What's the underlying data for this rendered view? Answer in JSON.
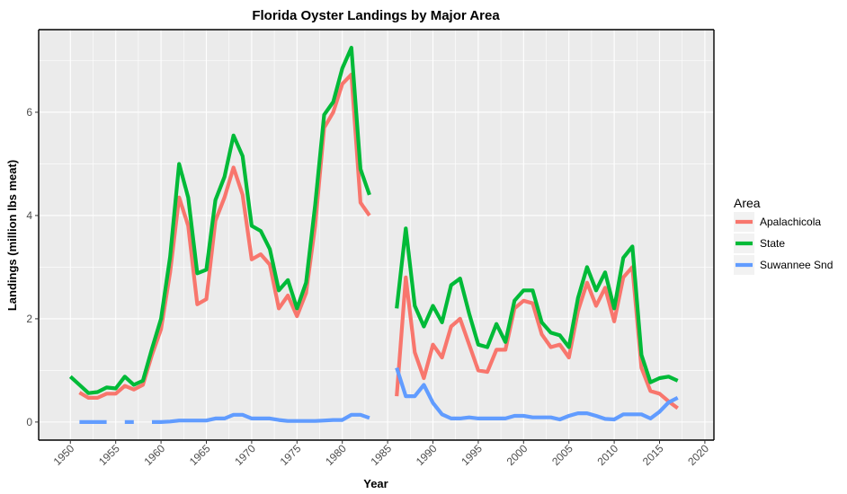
{
  "chart_data": {
    "type": "line",
    "title": "Florida Oyster Landings by Major Area",
    "xlabel": "Year",
    "ylabel": "Landings (million lbs meat)",
    "xlim": [
      1946.5,
      2021
    ],
    "ylim": [
      -0.35,
      7.6
    ],
    "x_ticks": [
      1950,
      1955,
      1960,
      1965,
      1970,
      1975,
      1980,
      1985,
      1990,
      1995,
      2000,
      2005,
      2010,
      2015,
      2020
    ],
    "y_ticks": [
      0,
      2,
      4,
      6
    ],
    "legend_title": "Area",
    "legend_position": "right",
    "series": [
      {
        "name": "Apalachicola",
        "color": "#f8766d",
        "x": [
          1951,
          1952,
          1953,
          1954,
          1955,
          1956,
          1957,
          1958,
          1959,
          1960,
          1961,
          1962,
          1963,
          1964,
          1965,
          1966,
          1967,
          1968,
          1969,
          1970,
          1971,
          1972,
          1973,
          1974,
          1975,
          1976,
          1977,
          1978,
          1979,
          1980,
          1981,
          1982,
          1983,
          null,
          1986,
          1987,
          1988,
          1989,
          1990,
          1991,
          1992,
          1993,
          1994,
          1995,
          1996,
          1997,
          1998,
          1999,
          2000,
          2001,
          2002,
          2003,
          2004,
          2005,
          2006,
          2007,
          2008,
          2009,
          2010,
          2011,
          2012,
          2013,
          2014,
          2015,
          2016,
          2017
        ],
        "y": [
          0.57,
          0.47,
          0.47,
          0.55,
          0.55,
          0.7,
          0.63,
          0.72,
          1.3,
          1.8,
          2.9,
          4.35,
          3.8,
          2.28,
          2.38,
          3.9,
          4.35,
          4.93,
          4.4,
          3.15,
          3.25,
          3.05,
          2.2,
          2.45,
          2.05,
          2.5,
          3.8,
          5.7,
          6.0,
          6.55,
          6.73,
          4.25,
          4.0,
          null,
          0.5,
          2.8,
          1.35,
          0.85,
          1.5,
          1.25,
          1.85,
          2.0,
          1.5,
          1.0,
          0.97,
          1.4,
          1.4,
          2.2,
          2.35,
          2.3,
          1.7,
          1.45,
          1.5,
          1.25,
          2.15,
          2.7,
          2.25,
          2.6,
          1.95,
          2.8,
          3.0,
          1.05,
          0.6,
          0.55,
          0.4,
          0.27
        ]
      },
      {
        "name": "State",
        "color": "#00ba38",
        "x": [
          1950,
          1951,
          1952,
          1953,
          1954,
          1955,
          1956,
          1957,
          1958,
          1959,
          1960,
          1961,
          1962,
          1963,
          1964,
          1965,
          1966,
          1967,
          1968,
          1969,
          1970,
          1971,
          1972,
          1973,
          1974,
          1975,
          1976,
          1977,
          1978,
          1979,
          1980,
          1981,
          1982,
          1983,
          null,
          1986,
          1987,
          1988,
          1989,
          1990,
          1991,
          1992,
          1993,
          1994,
          1995,
          1996,
          1997,
          1998,
          1999,
          2000,
          2001,
          2002,
          2003,
          2004,
          2005,
          2006,
          2007,
          2008,
          2009,
          2010,
          2011,
          2012,
          2013,
          2014,
          2015,
          2016,
          2017
        ],
        "y": [
          0.88,
          0.72,
          0.56,
          0.58,
          0.67,
          0.65,
          0.88,
          0.72,
          0.8,
          1.42,
          2.0,
          3.2,
          5.0,
          4.35,
          2.88,
          2.95,
          4.3,
          4.75,
          5.55,
          5.15,
          3.8,
          3.7,
          3.35,
          2.55,
          2.75,
          2.2,
          2.7,
          4.2,
          5.95,
          6.2,
          6.85,
          7.25,
          4.9,
          4.4,
          null,
          2.2,
          3.75,
          2.25,
          1.85,
          2.25,
          1.93,
          2.65,
          2.78,
          2.1,
          1.5,
          1.45,
          1.9,
          1.55,
          2.35,
          2.55,
          2.55,
          1.93,
          1.73,
          1.68,
          1.45,
          2.4,
          3.0,
          2.55,
          2.9,
          2.2,
          3.18,
          3.4,
          1.3,
          0.77,
          0.85,
          0.88,
          0.8
        ]
      },
      {
        "name": "Suwannee Snd",
        "color": "#619cff",
        "x": [
          1951,
          1952,
          1953,
          1954,
          null,
          1956,
          1957,
          null,
          1959,
          1960,
          1961,
          1962,
          1963,
          1964,
          1965,
          1966,
          1967,
          1968,
          1969,
          1970,
          1971,
          1972,
          1973,
          1974,
          1975,
          1976,
          1977,
          1978,
          1979,
          1980,
          1981,
          1982,
          1983,
          null,
          1986,
          1987,
          1988,
          1989,
          1990,
          1991,
          1992,
          1993,
          1994,
          1995,
          1996,
          1997,
          1998,
          1999,
          2000,
          2001,
          2002,
          2003,
          2004,
          2005,
          2006,
          2007,
          2008,
          2009,
          2010,
          2011,
          2012,
          2013,
          2014,
          2015,
          2016,
          2017
        ],
        "y": [
          0.0,
          0.0,
          0.0,
          0.0,
          null,
          0.0,
          0.0,
          null,
          0.0,
          0.0,
          0.01,
          0.03,
          0.03,
          0.03,
          0.03,
          0.07,
          0.07,
          0.14,
          0.14,
          0.07,
          0.07,
          0.07,
          0.04,
          0.02,
          0.02,
          0.02,
          0.02,
          0.03,
          0.04,
          0.04,
          0.14,
          0.14,
          0.08,
          null,
          1.05,
          0.5,
          0.5,
          0.72,
          0.37,
          0.15,
          0.07,
          0.07,
          0.09,
          0.07,
          0.07,
          0.07,
          0.07,
          0.12,
          0.12,
          0.09,
          0.09,
          0.09,
          0.05,
          0.12,
          0.17,
          0.17,
          0.12,
          0.06,
          0.05,
          0.15,
          0.15,
          0.15,
          0.07,
          0.2,
          0.38,
          0.47
        ]
      }
    ]
  }
}
